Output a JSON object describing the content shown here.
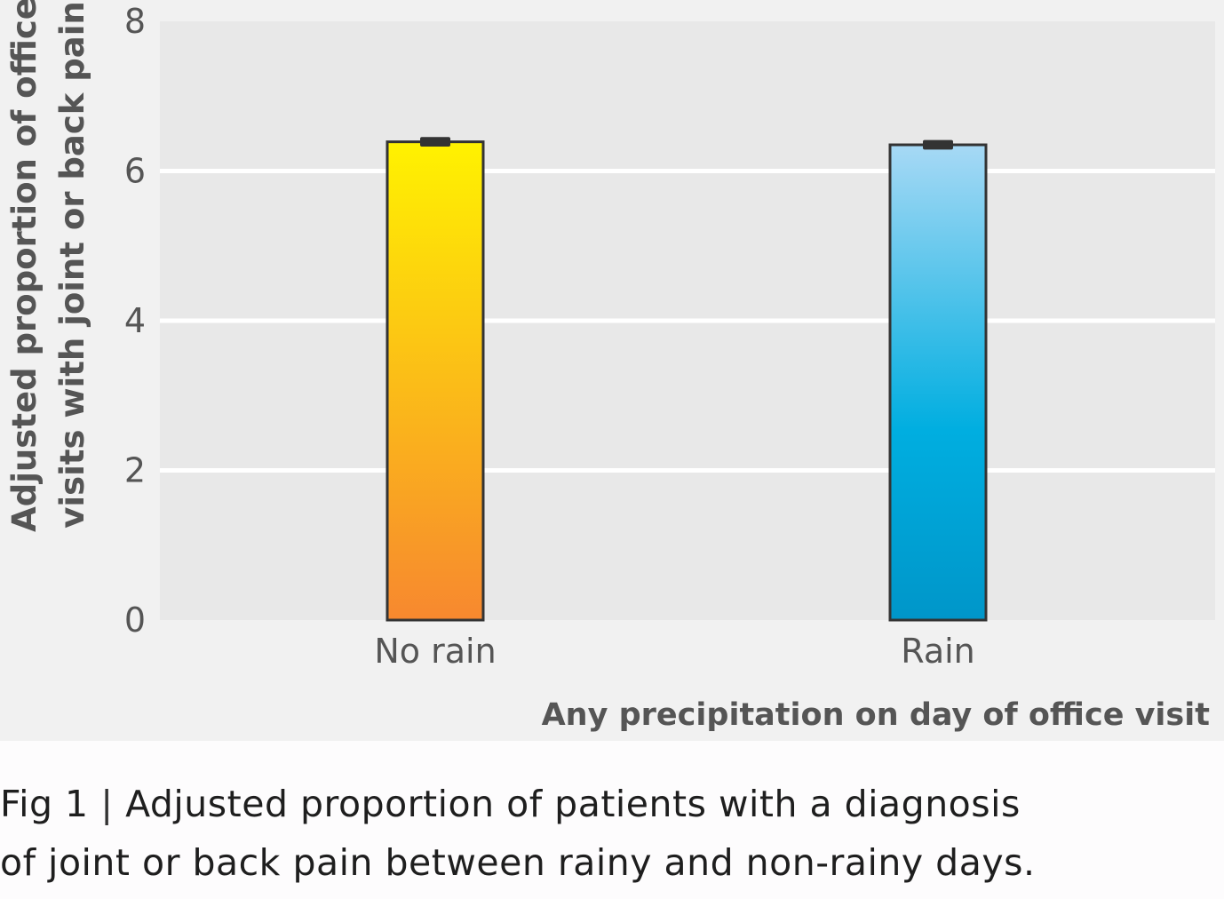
{
  "chart_data": {
    "type": "bar",
    "categories": [
      "No rain",
      "Rain"
    ],
    "values": [
      6.39,
      6.35
    ],
    "error": [
      0.04,
      0.04
    ],
    "ylabel_lines": [
      "Adjusted proportion of office",
      "visits with joint or back pain"
    ],
    "xlabel": "Any precipitation on day of office visit",
    "ylim": [
      0,
      8
    ],
    "yticks": [
      0,
      2,
      4,
      6,
      8
    ],
    "grid": true,
    "bar_colors": [
      {
        "top": "#fff200",
        "bottom": "#f7882f"
      },
      {
        "top": "#a7d9f5",
        "mid": "#00aee0",
        "bottom": "#0096c9"
      }
    ]
  },
  "caption": {
    "fig_label": "Fig 1",
    "separator": "|",
    "line1": "Adjusted proportion of patients with a diagnosis",
    "line2": "of joint or back pain between rainy and non-rainy days."
  }
}
